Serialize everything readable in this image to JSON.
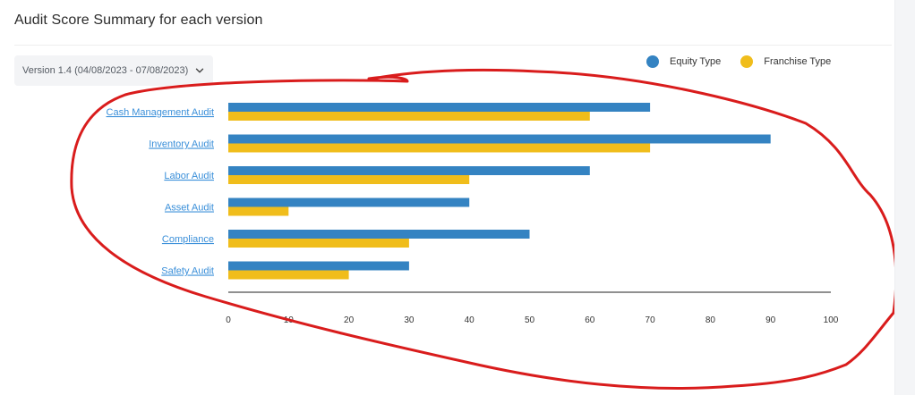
{
  "header": {
    "title": "Audit Score Summary for each version"
  },
  "version_select": {
    "value": "Version 1.4 (04/08/2023 - 07/08/2023)",
    "icon": "chevron-down-icon"
  },
  "colors": {
    "equity": "#3483c2",
    "franchise": "#f0bd1b",
    "axis": "#222222",
    "annotation": "#d91c1c"
  },
  "chart_data": {
    "type": "bar",
    "orientation": "horizontal",
    "title": "",
    "xlabel": "",
    "ylabel": "",
    "xlim": [
      0,
      100
    ],
    "x_ticks": [
      0,
      10,
      20,
      30,
      40,
      50,
      60,
      70,
      80,
      90,
      100
    ],
    "grid": false,
    "legend_position": "top-right",
    "categories": [
      "Cash Management Audit",
      "Inventory Audit",
      "Labor Audit",
      "Asset Audit",
      "Compliance",
      "Safety Audit"
    ],
    "series": [
      {
        "name": "Equity Type",
        "values": [
          70,
          90,
          60,
          40,
          50,
          30
        ]
      },
      {
        "name": "Franchise Type",
        "values": [
          60,
          70,
          40,
          10,
          30,
          20
        ]
      }
    ]
  }
}
